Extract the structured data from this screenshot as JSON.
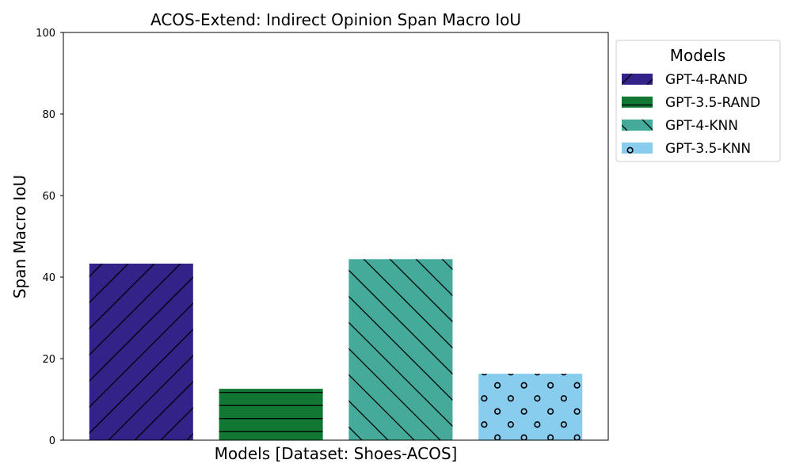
{
  "chart_data": {
    "type": "bar",
    "title": "ACOS-Extend: Indirect Opinion Span Macro IoU",
    "xlabel": "Models [Dataset: Shoes-ACOS]",
    "ylabel": "Span Macro IoU",
    "ylim": [
      0,
      100
    ],
    "yticks": [
      "0",
      "20",
      "40",
      "60",
      "80",
      "100"
    ],
    "grid": false,
    "legend": {
      "title": "Models",
      "placement": "outside-top-right"
    },
    "series": [
      {
        "name": "GPT-4-RAND",
        "value": 43.3,
        "color": "#332288",
        "hatch": "forward-diagonal"
      },
      {
        "name": "GPT-3.5-RAND",
        "value": 12.6,
        "color": "#117733",
        "hatch": "horizontal"
      },
      {
        "name": "GPT-4-KNN",
        "value": 44.4,
        "color": "#44aa99",
        "hatch": "back-diagonal"
      },
      {
        "name": "GPT-3.5-KNN",
        "value": 16.3,
        "color": "#88ccee",
        "hatch": "circles"
      }
    ]
  }
}
